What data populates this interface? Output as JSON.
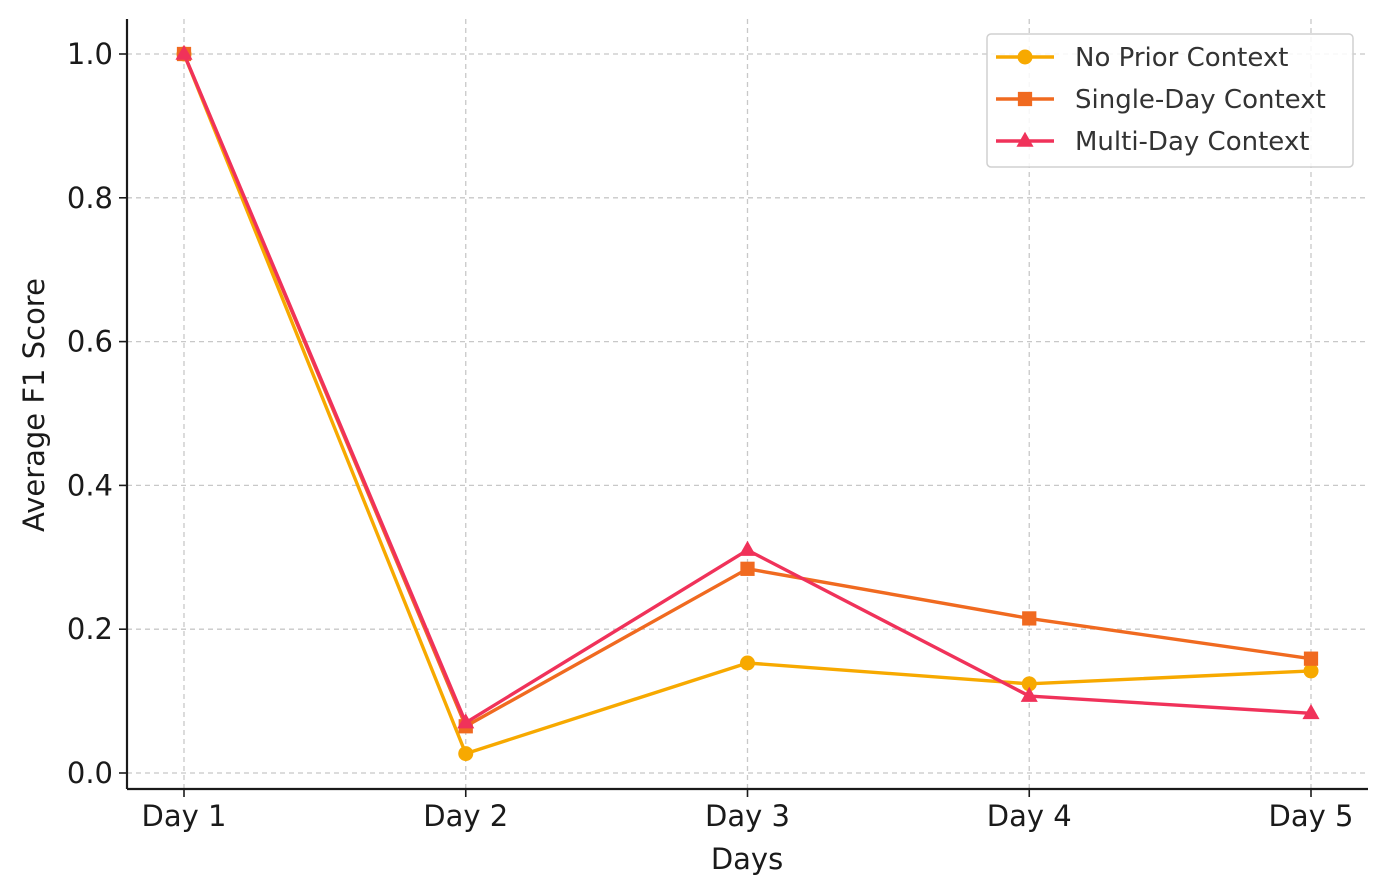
{
  "chart_data": {
    "type": "line",
    "title": "",
    "xlabel": "Days",
    "ylabel": "Average F1 Score",
    "categories": [
      "Day 1",
      "Day 2",
      "Day 3",
      "Day 4",
      "Day 5"
    ],
    "ylim": [
      -0.022,
      1.05
    ],
    "yticks": [
      "0.0",
      "0.2",
      "0.4",
      "0.6",
      "0.8",
      "1.0"
    ],
    "ytick_values": [
      0.0,
      0.2,
      0.4,
      0.6,
      0.8,
      1.0
    ],
    "grid": true,
    "grid_style": "dashed",
    "legend_position": "top-right",
    "series": [
      {
        "name": "No Prior Context",
        "values": [
          1.0,
          0.027,
          0.153,
          0.124,
          0.142
        ],
        "color": "#F7A900",
        "marker": "circle"
      },
      {
        "name": "Single-Day Context",
        "values": [
          1.0,
          0.065,
          0.284,
          0.215,
          0.159
        ],
        "color": "#F06A20",
        "marker": "square"
      },
      {
        "name": "Multi-Day Context",
        "values": [
          1.0,
          0.07,
          0.31,
          0.107,
          0.083
        ],
        "color": "#F0325A",
        "marker": "triangle"
      }
    ]
  }
}
